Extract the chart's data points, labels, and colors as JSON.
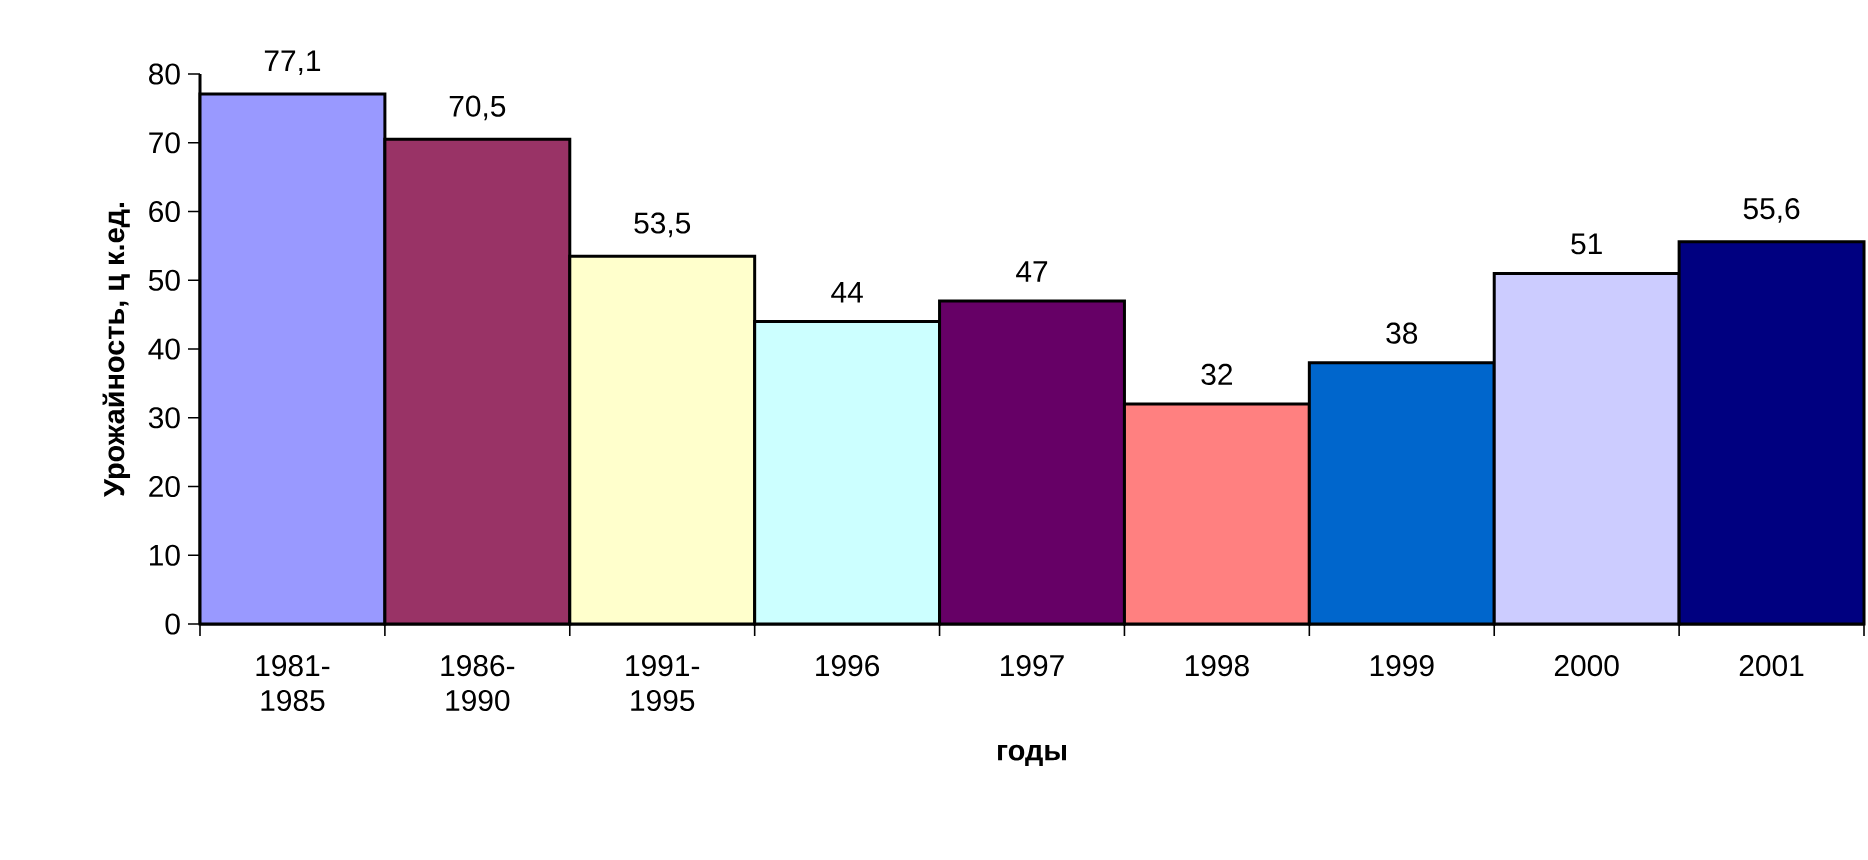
{
  "chart_data": {
    "type": "bar",
    "xlabel": "годы",
    "ylabel": "Урожайность, ц к.ед.",
    "categories": [
      "1981-1985",
      "1986-1990",
      "1991-1995",
      "1996",
      "1997",
      "1998",
      "1999",
      "2000",
      "2001"
    ],
    "values": [
      77.1,
      70.5,
      53.5,
      44,
      47,
      32,
      38,
      51,
      55.6
    ],
    "value_labels": [
      "77,1",
      "70,5",
      "53,5",
      "44",
      "47",
      "32",
      "38",
      "51",
      "55,6"
    ],
    "colors": [
      "#9999ff",
      "#993366",
      "#ffffcc",
      "#ccffff",
      "#660066",
      "#ff8080",
      "#0066cc",
      "#ccccff",
      "#000080"
    ],
    "ylim": [
      0,
      80
    ],
    "yticks": [
      0,
      10,
      20,
      30,
      40,
      50,
      60,
      70,
      80
    ]
  }
}
